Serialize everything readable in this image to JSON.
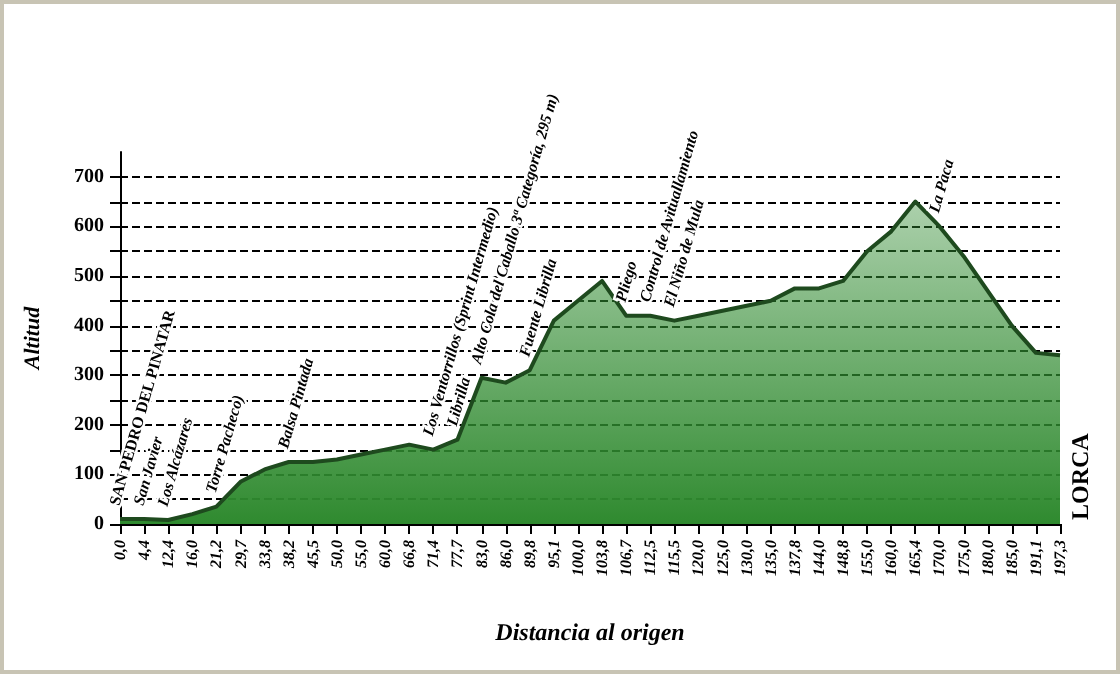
{
  "chart_data": {
    "type": "area",
    "xlabel": "Distancia al origen",
    "ylabel": "Altitud",
    "categories": [
      "0,0",
      "4,4",
      "12,4",
      "16,0",
      "21,2",
      "29,7",
      "33,8",
      "38,2",
      "45,5",
      "50,0",
      "55,0",
      "60,0",
      "66,8",
      "71,4",
      "77,7",
      "83,0",
      "86,0",
      "89,8",
      "95,1",
      "100,0",
      "103,8",
      "106,7",
      "112,5",
      "115,5",
      "120,0",
      "125,0",
      "130,0",
      "135,0",
      "137,8",
      "144,0",
      "148,8",
      "155,0",
      "160,0",
      "165,4",
      "170,0",
      "175,0",
      "180,0",
      "185,0",
      "191,1",
      "197,3"
    ],
    "values": [
      10,
      10,
      8,
      20,
      35,
      85,
      110,
      125,
      125,
      130,
      140,
      150,
      160,
      150,
      170,
      295,
      285,
      310,
      410,
      450,
      490,
      420,
      420,
      410,
      420,
      430,
      440,
      450,
      475,
      475,
      490,
      550,
      590,
      650,
      600,
      540,
      470,
      400,
      345,
      340
    ],
    "color": "#2f8a2f",
    "ylim": [
      0,
      750
    ],
    "yticks": [
      0,
      {
        "value": 50,
        "label": null
      },
      100,
      {
        "value": 150,
        "label": null
      },
      200,
      {
        "value": 250,
        "label": null
      },
      300,
      {
        "value": 350,
        "label": null
      },
      400,
      {
        "value": 450,
        "label": null
      },
      500,
      {
        "value": 550,
        "label": null
      },
      600,
      {
        "value": 650,
        "label": null
      },
      700
    ],
    "grid": "y",
    "marker": "none",
    "annotations": [
      {
        "text": "SAN PEDRO DEL PINATAR",
        "x": "0,0",
        "y": 10
      },
      {
        "text": "San Javier",
        "x": "4,4",
        "y": 10
      },
      {
        "text": "Los Alcázares",
        "x": "12,4",
        "y": 8
      },
      {
        "text": "Torre Pacheco)",
        "x": "21,2",
        "y": 35
      },
      {
        "text": "Balsa Pintada",
        "x": "38,2",
        "y": 125
      },
      {
        "text": "Los Ventorrillos (Sprint Intermedio)",
        "x": "71,4",
        "y": 150
      },
      {
        "text": "Librilla",
        "x": "77,7",
        "y": 170
      },
      {
        "text": "Alto Cola del Caballo 3ª Categoría, 295 m)",
        "x": "83,0",
        "y": 295
      },
      {
        "text": "Fuente Librilla",
        "x": "89,8",
        "y": 310
      },
      {
        "text": "Pliego",
        "x": "106,7",
        "y": 420
      },
      {
        "text": "Control de Avituallamiento",
        "x": "112,5",
        "y": 420
      },
      {
        "text": "El Niño de Mula",
        "x": "115,5",
        "y": 410
      },
      {
        "text": "La Paca",
        "x": "170,0",
        "y": 600
      },
      {
        "text": "LORCA",
        "x": "197,3",
        "y": 0
      }
    ]
  }
}
